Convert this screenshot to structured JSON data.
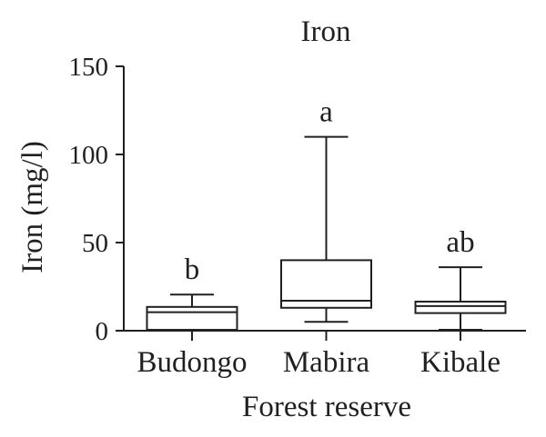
{
  "chart_data": {
    "type": "box",
    "title": "Iron",
    "xlabel": "Forest reserve",
    "ylabel": "Iron (mg/l)",
    "categories": [
      "Budongo",
      "Mabira",
      "Kibale"
    ],
    "ylim": [
      0,
      150
    ],
    "yticks": [
      0,
      50,
      100,
      150
    ],
    "grid": false,
    "legend": false,
    "ink_color": "#231f20",
    "background_color": "#ffffff",
    "series": [
      {
        "category": "Budongo",
        "whisker_low": 0.5,
        "q1": 0.5,
        "median": 10.5,
        "q3": 13.5,
        "whisker_high": 20.5,
        "significance_letter": "b"
      },
      {
        "category": "Mabira",
        "whisker_low": 5,
        "q1": 13,
        "median": 17,
        "q3": 40,
        "whisker_high": 110,
        "significance_letter": "a"
      },
      {
        "category": "Kibale",
        "whisker_low": 0.5,
        "q1": 10,
        "median": 14,
        "q3": 16.5,
        "whisker_high": 36,
        "significance_letter": "ab"
      }
    ]
  }
}
